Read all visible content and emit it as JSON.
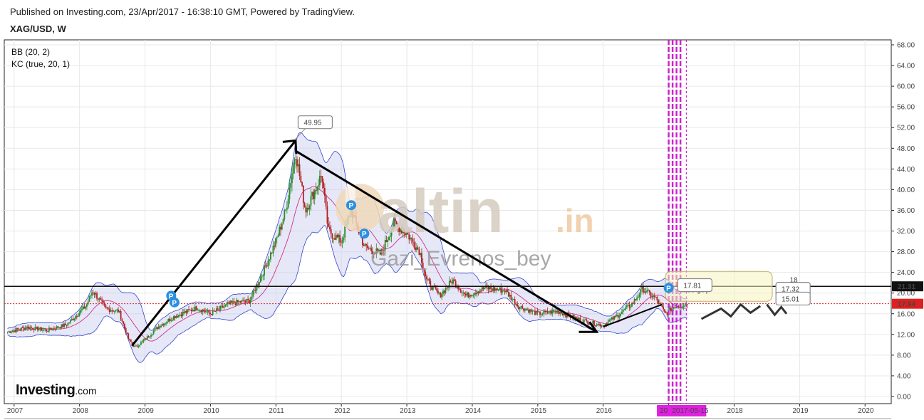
{
  "header": {
    "published": "Published on Investing.com, 23/Apr/2017 - 16:38:10 GMT, Powered by TradingView.",
    "symbol": "XAG/USD, W"
  },
  "indicators": [
    "BB (20, 2)",
    "KC (true, 20, 1)"
  ],
  "watermark": {
    "brand": "altin",
    "tld": ".in",
    "author": "Gazi_Evrenos_bey"
  },
  "logo": {
    "bold": "Investing",
    "light": ".com"
  },
  "colors": {
    "candle_up": "#2a8a2a",
    "candle_down": "#b22222",
    "band_fill": "#c8cdf0",
    "band_line": "#3344cc",
    "marker": "#cc22cc",
    "price_tag": "#e02020"
  },
  "chart_data": {
    "type": "candlestick",
    "x_axis": {
      "start": 2006.85,
      "end": 2020.4,
      "labels": [
        "2007",
        "2008",
        "2009",
        "2010",
        "2011",
        "2012",
        "2013",
        "2014",
        "2015",
        "2016",
        "2017",
        "2018",
        "2019",
        "2020"
      ]
    },
    "y_axis": {
      "min": 0,
      "max": 68,
      "ticks": [
        "0.00",
        "4.00",
        "8.00",
        "12.00",
        "16.00",
        "20.00",
        "24.00",
        "28.00",
        "32.00",
        "36.00",
        "40.00",
        "44.00",
        "48.00",
        "52.00",
        "56.00",
        "60.00",
        "64.00",
        "68.00"
      ]
    },
    "price_path": [
      [
        2006.9,
        12.5
      ],
      [
        2007.2,
        13.4
      ],
      [
        2007.5,
        12.8
      ],
      [
        2007.8,
        13.9
      ],
      [
        2008.1,
        17.5
      ],
      [
        2008.2,
        20.5
      ],
      [
        2008.4,
        17.0
      ],
      [
        2008.6,
        16.5
      ],
      [
        2008.75,
        11.0
      ],
      [
        2008.85,
        9.5
      ],
      [
        2009.0,
        11.0
      ],
      [
        2009.2,
        13.5
      ],
      [
        2009.45,
        15.5
      ],
      [
        2009.8,
        17.2
      ],
      [
        2010.0,
        16.0
      ],
      [
        2010.3,
        18.0
      ],
      [
        2010.6,
        18.5
      ],
      [
        2010.8,
        24.0
      ],
      [
        2011.0,
        30.0
      ],
      [
        2011.15,
        36.0
      ],
      [
        2011.3,
        47.5
      ],
      [
        2011.45,
        36.0
      ],
      [
        2011.6,
        40.0
      ],
      [
        2011.7,
        43.0
      ],
      [
        2011.8,
        32.0
      ],
      [
        2012.0,
        30.0
      ],
      [
        2012.15,
        36.0
      ],
      [
        2012.35,
        29.0
      ],
      [
        2012.6,
        27.5
      ],
      [
        2012.8,
        33.5
      ],
      [
        2013.0,
        31.5
      ],
      [
        2013.2,
        28.0
      ],
      [
        2013.3,
        22.5
      ],
      [
        2013.5,
        19.5
      ],
      [
        2013.7,
        22.5
      ],
      [
        2013.9,
        19.5
      ],
      [
        2014.2,
        21.0
      ],
      [
        2014.5,
        20.5
      ],
      [
        2014.7,
        17.5
      ],
      [
        2015.0,
        16.0
      ],
      [
        2015.3,
        16.5
      ],
      [
        2015.6,
        15.0
      ],
      [
        2015.9,
        14.0
      ],
      [
        2016.0,
        13.8
      ],
      [
        2016.2,
        15.5
      ],
      [
        2016.45,
        18.0
      ],
      [
        2016.6,
        20.8
      ],
      [
        2016.8,
        19.0
      ],
      [
        2016.95,
        16.0
      ],
      [
        2017.1,
        17.5
      ],
      [
        2017.3,
        17.94
      ]
    ],
    "horizontal_lines": [
      {
        "value": 21.31,
        "label": "21.31",
        "style": "solid"
      },
      {
        "value": 17.94,
        "label": "17.94",
        "style": "dotted"
      }
    ],
    "annotations": [
      {
        "label": "49.95",
        "x": 2011.6,
        "y": 52.9
      },
      {
        "label": "17.81",
        "x": 2017.4,
        "y": 21.4
      },
      {
        "label": "17.32",
        "x": 2018.9,
        "y": 20.7
      },
      {
        "label": "15.01",
        "x": 2018.9,
        "y": 18.8
      }
    ],
    "cursor_date_label": "2017-05-15",
    "cursor_prefix": "20",
    "projection_text": "lase geç",
    "partial_value": "18"
  }
}
